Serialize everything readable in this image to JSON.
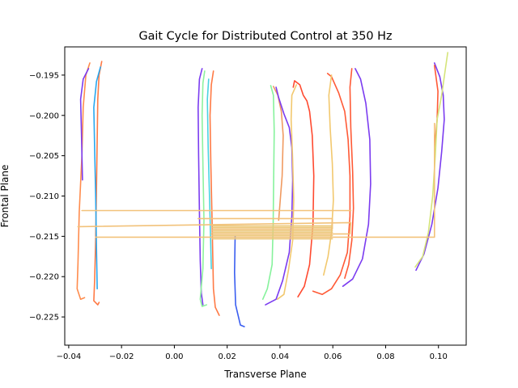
{
  "chart_data": {
    "type": "line",
    "title": "Gait Cycle for Distributed Control at 350 Hz",
    "xlabel": "Transverse Plane",
    "ylabel": "Frontal Plane",
    "xlim": [
      -0.0415,
      0.1105
    ],
    "ylim": [
      -0.2285,
      -0.1915
    ],
    "x_ticks": [
      -0.04,
      -0.02,
      0.0,
      0.02,
      0.04,
      0.06,
      0.08,
      0.1
    ],
    "x_tick_labels": [
      "−0.04",
      "−0.02",
      "0.00",
      "0.02",
      "0.04",
      "0.06",
      "0.08",
      "0.10"
    ],
    "y_ticks": [
      -0.195,
      -0.2,
      -0.205,
      -0.21,
      -0.215,
      -0.22,
      -0.225
    ],
    "y_tick_labels": [
      "−0.195",
      "−0.200",
      "−0.205",
      "−0.210",
      "−0.215",
      "−0.220",
      "−0.225"
    ],
    "grid": false,
    "legend": false,
    "colormap": [
      "#6a2cf2",
      "#2ea9f2",
      "#34e2d3",
      "#84f3a8",
      "#c4e77f",
      "#f2c86e",
      "#ff8c4d",
      "#f7412f"
    ],
    "series": [
      {
        "color": "#ff8c4d",
        "points": [
          [
            -0.032,
            -0.1935
          ],
          [
            -0.0335,
            -0.195
          ],
          [
            -0.0345,
            -0.199
          ],
          [
            -0.035,
            -0.205
          ],
          [
            -0.036,
            -0.212
          ],
          [
            -0.0365,
            -0.2185
          ],
          [
            -0.0368,
            -0.2215
          ],
          [
            -0.0355,
            -0.2228
          ],
          [
            -0.034,
            -0.2226
          ]
        ]
      },
      {
        "color": "#7b3cf0",
        "points": [
          [
            -0.0325,
            -0.1942
          ],
          [
            -0.0345,
            -0.1955
          ],
          [
            -0.0355,
            -0.198
          ],
          [
            -0.0352,
            -0.202
          ],
          [
            -0.0348,
            -0.208
          ]
        ]
      },
      {
        "color": "#ff7a45",
        "points": [
          [
            -0.0275,
            -0.1933
          ],
          [
            -0.0285,
            -0.195
          ],
          [
            -0.029,
            -0.198
          ],
          [
            -0.0292,
            -0.203
          ],
          [
            -0.0295,
            -0.209
          ],
          [
            -0.0298,
            -0.2155
          ],
          [
            -0.0302,
            -0.2205
          ],
          [
            -0.0305,
            -0.223
          ],
          [
            -0.029,
            -0.2235
          ],
          [
            -0.0285,
            -0.2232
          ]
        ]
      },
      {
        "color": "#2aa7ee",
        "points": [
          [
            -0.028,
            -0.194
          ],
          [
            -0.0295,
            -0.1958
          ],
          [
            -0.0305,
            -0.199
          ],
          [
            -0.0302,
            -0.204
          ],
          [
            -0.0298,
            -0.21
          ],
          [
            -0.0295,
            -0.2165
          ],
          [
            -0.0292,
            -0.2215
          ]
        ]
      },
      {
        "color": "#7b3cf0",
        "points": [
          [
            0.0105,
            -0.1942
          ],
          [
            0.0095,
            -0.1955
          ],
          [
            0.009,
            -0.199
          ],
          [
            0.0092,
            -0.205
          ],
          [
            0.0095,
            -0.212
          ],
          [
            0.0098,
            -0.218
          ],
          [
            0.0102,
            -0.222
          ],
          [
            0.0108,
            -0.2235
          ]
        ]
      },
      {
        "color": "#8ef29e",
        "points": [
          [
            0.0115,
            -0.1945
          ],
          [
            0.0108,
            -0.196
          ],
          [
            0.0105,
            -0.2
          ],
          [
            0.0108,
            -0.206
          ],
          [
            0.0112,
            -0.213
          ],
          [
            0.0108,
            -0.219
          ],
          [
            0.0098,
            -0.2228
          ],
          [
            0.0105,
            -0.2237
          ],
          [
            0.0122,
            -0.2235
          ]
        ]
      },
      {
        "color": "#ff7a45",
        "points": [
          [
            0.0148,
            -0.1945
          ],
          [
            0.014,
            -0.1962
          ],
          [
            0.0135,
            -0.2
          ],
          [
            0.0138,
            -0.206
          ],
          [
            0.0142,
            -0.212
          ],
          [
            0.0145,
            -0.2165
          ],
          [
            0.0148,
            -0.2215
          ],
          [
            0.0155,
            -0.2238
          ],
          [
            0.017,
            -0.2248
          ]
        ]
      },
      {
        "color": "#4ad3e0",
        "points": [
          [
            0.013,
            -0.1955
          ],
          [
            0.0125,
            -0.198
          ],
          [
            0.0128,
            -0.204
          ],
          [
            0.0135,
            -0.2125
          ],
          [
            0.014,
            -0.219
          ]
        ]
      },
      {
        "color": "#3a5ef0",
        "points": [
          [
            0.023,
            -0.215
          ],
          [
            0.0228,
            -0.2195
          ],
          [
            0.0232,
            -0.2235
          ],
          [
            0.025,
            -0.226
          ],
          [
            0.0265,
            -0.2262
          ]
        ]
      },
      {
        "color": "#86f29c",
        "points": [
          [
            0.0365,
            -0.1963
          ],
          [
            0.0375,
            -0.1975
          ],
          [
            0.0378,
            -0.202
          ],
          [
            0.0376,
            -0.208
          ],
          [
            0.0374,
            -0.2135
          ],
          [
            0.037,
            -0.2185
          ],
          [
            0.0352,
            -0.2215
          ],
          [
            0.0335,
            -0.2228
          ]
        ]
      },
      {
        "color": "#f09a60",
        "points": [
          [
            0.0375,
            -0.1964
          ],
          [
            0.0392,
            -0.1975
          ],
          [
            0.0405,
            -0.1995
          ],
          [
            0.0412,
            -0.2025
          ],
          [
            0.0408,
            -0.2075
          ],
          [
            0.0395,
            -0.213
          ]
        ]
      },
      {
        "color": "#7b3cf0",
        "points": [
          [
            0.0385,
            -0.1965
          ],
          [
            0.0395,
            -0.1978
          ],
          [
            0.0415,
            -0.1998
          ],
          [
            0.0435,
            -0.2015
          ],
          [
            0.0445,
            -0.204
          ],
          [
            0.0448,
            -0.208
          ],
          [
            0.0445,
            -0.2125
          ],
          [
            0.0435,
            -0.217
          ],
          [
            0.041,
            -0.2205
          ],
          [
            0.0385,
            -0.2228
          ],
          [
            0.0345,
            -0.2235
          ]
        ]
      },
      {
        "color": "#ff4a30",
        "points": [
          [
            0.045,
            -0.1965
          ],
          [
            0.0455,
            -0.1957
          ],
          [
            0.0475,
            -0.1962
          ],
          [
            0.0488,
            -0.1975
          ],
          [
            0.0502,
            -0.1982
          ],
          [
            0.0512,
            -0.1995
          ],
          [
            0.0522,
            -0.2025
          ],
          [
            0.0528,
            -0.2075
          ],
          [
            0.0525,
            -0.2135
          ],
          [
            0.0512,
            -0.2185
          ],
          [
            0.0492,
            -0.2212
          ],
          [
            0.0468,
            -0.2225
          ]
        ]
      },
      {
        "color": "#f2c86e",
        "points": [
          [
            0.0462,
            -0.1962
          ],
          [
            0.0445,
            -0.1975
          ],
          [
            0.0442,
            -0.2005
          ],
          [
            0.0448,
            -0.2055
          ],
          [
            0.0452,
            -0.2105
          ],
          [
            0.0448,
            -0.2155
          ],
          [
            0.0432,
            -0.2192
          ],
          [
            0.0415,
            -0.2222
          ],
          [
            0.039,
            -0.2228
          ]
        ]
      },
      {
        "color": "#ff5a36",
        "points": [
          [
            0.058,
            -0.1948
          ],
          [
            0.0595,
            -0.1952
          ],
          [
            0.0622,
            -0.1972
          ],
          [
            0.0645,
            -0.1995
          ],
          [
            0.0658,
            -0.203
          ],
          [
            0.0665,
            -0.2075
          ],
          [
            0.0665,
            -0.2125
          ],
          [
            0.0655,
            -0.217
          ],
          [
            0.0628,
            -0.2198
          ],
          [
            0.0595,
            -0.2215
          ],
          [
            0.056,
            -0.2222
          ],
          [
            0.0525,
            -0.2218
          ]
        ]
      },
      {
        "color": "#f2c86e",
        "points": [
          [
            0.0595,
            -0.195
          ],
          [
            0.0585,
            -0.1975
          ],
          [
            0.059,
            -0.2015
          ],
          [
            0.0598,
            -0.206
          ],
          [
            0.0602,
            -0.2105
          ],
          [
            0.0595,
            -0.2145
          ],
          [
            0.0582,
            -0.2175
          ],
          [
            0.0565,
            -0.2198
          ]
        ]
      },
      {
        "color": "#7b3cf0",
        "points": [
          [
            0.0685,
            -0.1942
          ],
          [
            0.0705,
            -0.1955
          ],
          [
            0.0725,
            -0.1985
          ],
          [
            0.074,
            -0.203
          ],
          [
            0.0743,
            -0.2085
          ],
          [
            0.0735,
            -0.2135
          ],
          [
            0.0712,
            -0.2178
          ],
          [
            0.0675,
            -0.2203
          ],
          [
            0.0638,
            -0.2212
          ]
        ]
      },
      {
        "color": "#ff5a36",
        "points": [
          [
            0.0672,
            -0.1942
          ],
          [
            0.0665,
            -0.1965
          ],
          [
            0.0668,
            -0.2015
          ],
          [
            0.0675,
            -0.207
          ],
          [
            0.0678,
            -0.2115
          ],
          [
            0.0672,
            -0.2155
          ],
          [
            0.066,
            -0.2185
          ],
          [
            0.0645,
            -0.2202
          ]
        ]
      },
      {
        "color": "#7b3cf0",
        "points": [
          [
            0.0985,
            -0.1935
          ],
          [
            0.1005,
            -0.1952
          ],
          [
            0.1018,
            -0.1975
          ],
          [
            0.1022,
            -0.2005
          ],
          [
            0.1012,
            -0.2045
          ],
          [
            0.0998,
            -0.209
          ],
          [
            0.0975,
            -0.2135
          ],
          [
            0.0945,
            -0.2172
          ],
          [
            0.0915,
            -0.2192
          ]
        ]
      },
      {
        "color": "#ff5a36",
        "points": [
          [
            0.0985,
            -0.1938
          ],
          [
            0.0998,
            -0.197
          ],
          [
            0.0995,
            -0.2005
          ],
          [
            0.0985,
            -0.2042
          ]
        ]
      },
      {
        "color": "#d5e47a",
        "points": [
          [
            0.1035,
            -0.1922
          ],
          [
            0.1025,
            -0.1945
          ],
          [
            0.1012,
            -0.1975
          ],
          [
            0.0995,
            -0.2005
          ],
          [
            0.0988,
            -0.205
          ],
          [
            0.0978,
            -0.21
          ],
          [
            0.0962,
            -0.2145
          ],
          [
            0.094,
            -0.2175
          ],
          [
            0.0912,
            -0.2188
          ]
        ]
      },
      {
        "color": "#f2c27a",
        "points": [
          [
            -0.035,
            -0.2118
          ],
          [
            0.0668,
            -0.2118
          ]
        ]
      },
      {
        "color": "#f2c27a",
        "points": [
          [
            -0.0365,
            -0.2138
          ],
          [
            0.0668,
            -0.2133
          ],
          [
            0.0665,
            -0.2147
          ],
          [
            0.014,
            -0.2147
          ]
        ]
      },
      {
        "color": "#f2c27a",
        "points": [
          [
            -0.0298,
            -0.2151
          ],
          [
            0.0985,
            -0.2151
          ],
          [
            0.0985,
            -0.201
          ]
        ]
      },
      {
        "color": "#f2c27a",
        "points": [
          [
            0.009,
            -0.2128
          ],
          [
            0.0598,
            -0.2128
          ],
          [
            0.0598,
            -0.2141
          ],
          [
            0.0145,
            -0.2141
          ]
        ]
      },
      {
        "color": "#ecc77a",
        "points": [
          [
            0.0145,
            -0.2137
          ],
          [
            0.0598,
            -0.2137
          ]
        ]
      },
      {
        "color": "#ecc77a",
        "points": [
          [
            0.0145,
            -0.2139
          ],
          [
            0.0598,
            -0.2139
          ]
        ]
      },
      {
        "color": "#ecc77a",
        "points": [
          [
            0.0145,
            -0.2143
          ],
          [
            0.0598,
            -0.2143
          ]
        ]
      },
      {
        "color": "#ecc77a",
        "points": [
          [
            0.0145,
            -0.2145
          ],
          [
            0.0598,
            -0.2145
          ]
        ]
      },
      {
        "color": "#ecc77a",
        "points": [
          [
            0.0145,
            -0.2149
          ],
          [
            0.0598,
            -0.2149
          ]
        ]
      },
      {
        "color": "#ecc77a",
        "points": [
          [
            0.0145,
            -0.2153
          ],
          [
            0.0598,
            -0.2153
          ]
        ]
      }
    ]
  }
}
